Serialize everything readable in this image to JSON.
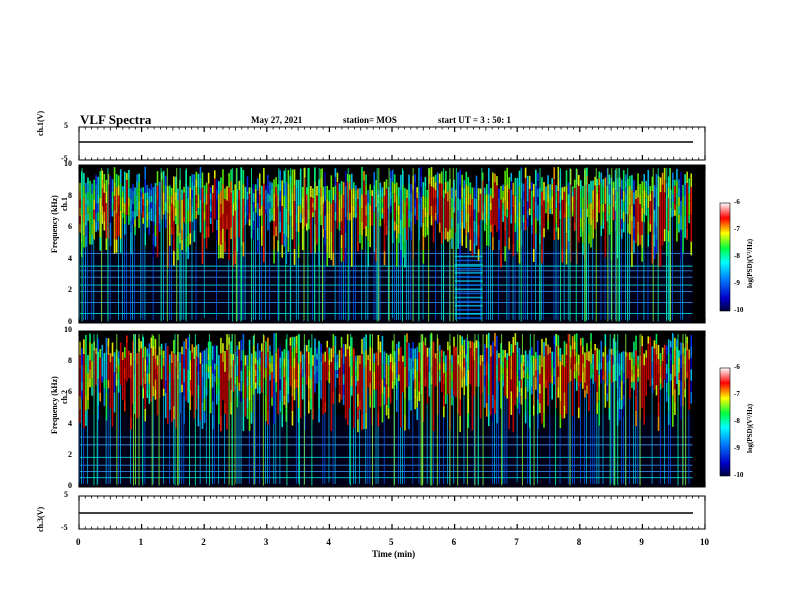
{
  "header": {
    "title": "VLF Spectra",
    "date": "May 27, 2021",
    "station": "station= MOS",
    "start": "start UT =  3 : 50: 1"
  },
  "chart_data": [
    {
      "type": "line",
      "name": "ch.1",
      "ylabel": "ch.1(V)",
      "ylim": [
        -5,
        5
      ],
      "yticks": [
        "5",
        "-5"
      ],
      "xlim": [
        0,
        10
      ],
      "series": [
        {
          "x": [
            0,
            9.8
          ],
          "values": [
            0,
            0
          ]
        }
      ]
    },
    {
      "type": "heatmap",
      "name": "ch.1 spectrogram",
      "ylabel": "ch.1\nFrequency (kHz)",
      "ylim": [
        0,
        10
      ],
      "yticks": [
        "0",
        "2",
        "4",
        "6",
        "8",
        "10"
      ],
      "xlim": [
        0,
        10
      ],
      "color_scale": {
        "label": "log(PSD)(V²/Hz)",
        "range": [
          -10,
          -6
        ],
        "ticks": [
          "-6",
          "-7",
          "-8",
          "-9",
          "-10"
        ]
      },
      "horizontal_lines_khz": [
        0.6,
        1.3,
        2.0,
        2.4,
        2.9,
        3.3,
        3.6,
        4.4
      ],
      "burst_window_min": [
        6.0,
        6.45
      ]
    },
    {
      "type": "heatmap",
      "name": "ch.2 spectrogram",
      "ylabel": "ch.2\nFrequency (kHz)",
      "ylim": [
        0,
        10
      ],
      "yticks": [
        "0",
        "2",
        "4",
        "6",
        "8",
        "10"
      ],
      "xlim": [
        0,
        10
      ],
      "color_scale": {
        "label": "log(PSD)(V²/Hz)",
        "range": [
          -10,
          -6
        ],
        "ticks": [
          "-6",
          "-7",
          "-8",
          "-9",
          "-10"
        ]
      },
      "horizontal_lines_khz": [
        0.6,
        1.0,
        1.4,
        1.9,
        2.7,
        3.2
      ]
    },
    {
      "type": "line",
      "name": "ch.3",
      "ylabel": "ch.3(V)",
      "ylim": [
        -5,
        5
      ],
      "yticks": [
        "5",
        "-5"
      ],
      "xlim": [
        0,
        10
      ],
      "series": [
        {
          "x": [
            0,
            9.8
          ],
          "values": [
            0,
            0
          ]
        }
      ]
    }
  ],
  "xaxis": {
    "label": "Time (min)",
    "ticks": [
      "0",
      "1",
      "2",
      "3",
      "4",
      "5",
      "6",
      "7",
      "8",
      "9",
      "10"
    ]
  },
  "colors": {
    "background": "#000000",
    "low": "#0000c8",
    "mid": "#00ff80",
    "high": "#ff0000",
    "trace": "#000000"
  }
}
